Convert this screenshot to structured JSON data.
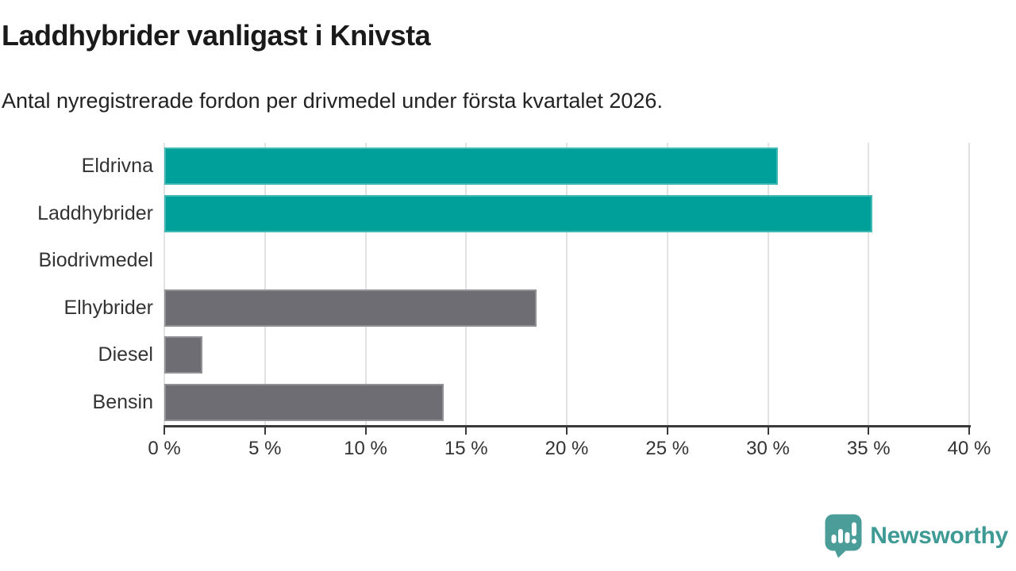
{
  "header": {
    "title": "Laddhybrider vanligast i Knivsta",
    "subtitle": "Antal nyregistrerade fordon per drivmedel under första kvartalet 2026."
  },
  "chart_data": {
    "type": "bar",
    "orientation": "horizontal",
    "title": "Laddhybrider vanligast i Knivsta",
    "subtitle": "Antal nyregistrerade fordon per drivmedel under första kvartalet 2026.",
    "categories": [
      "Eldrivna",
      "Laddhybrider",
      "Biodrivmedel",
      "Elhybrider",
      "Diesel",
      "Bensin"
    ],
    "values": [
      30.5,
      35.2,
      0,
      18.5,
      1.9,
      13.9
    ],
    "unit": "%",
    "bar_colors": [
      "#00A09A",
      "#00A09A",
      "#00A09A",
      "#6D6D73",
      "#6D6D73",
      "#6D6D73"
    ],
    "highlight_color": "#00A09A",
    "default_color": "#6D6D73",
    "xlim": [
      0,
      40
    ],
    "x_ticks": [
      0,
      5,
      10,
      15,
      20,
      25,
      30,
      35,
      40
    ],
    "x_tick_labels": [
      "0 %",
      "5 %",
      "10 %",
      "15 %",
      "20 %",
      "25 %",
      "30 %",
      "35 %",
      "40 %"
    ],
    "grid": "vertical",
    "gridline_color": "#e2e2e2",
    "axis_color": "#3a3a3a",
    "legend": "none"
  },
  "footer": {
    "brand": "Newsworthy",
    "brand_color": "#3E9A94",
    "icon_color": "#4A9D98"
  }
}
